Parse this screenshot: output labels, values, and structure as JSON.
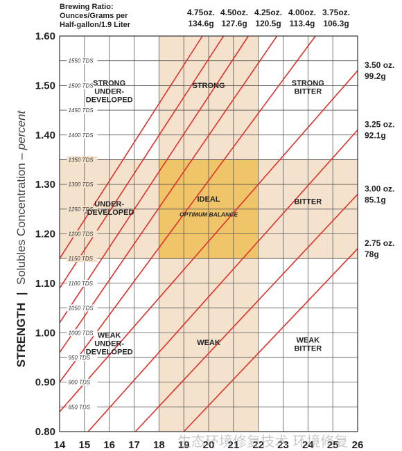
{
  "chart_data": {
    "type": "line",
    "header_lines": [
      "Brewing Ratio:",
      "Ounces/Grams per",
      "Half-gallon/1.9 Liter"
    ],
    "xlim": [
      14,
      26
    ],
    "ylim": [
      0.8,
      1.6
    ],
    "x_ticks": [
      "14",
      "15",
      "16",
      "17",
      "18",
      "19",
      "20",
      "21",
      "22",
      "23",
      "24",
      "25",
      "26"
    ],
    "y_ticks": [
      "0.80",
      "0.90",
      "1.00",
      "1.10",
      "1.20",
      "1.30",
      "1.40",
      "1.50",
      "1.60"
    ],
    "ylabel_bold": "STRENGTH",
    "ylabel_sep": "|",
    "ylabel_text": "Solubles Concentration – ",
    "ylabel_italic": "percent",
    "tds_labels": [
      {
        "label": "850 TDS",
        "y": 0.85
      },
      {
        "label": "900 TDS",
        "y": 0.9
      },
      {
        "label": "950 TDS",
        "y": 0.95
      },
      {
        "label": "1000 TDS",
        "y": 1.0
      },
      {
        "label": "1050 TDS",
        "y": 1.05
      },
      {
        "label": "1100 TDS",
        "y": 1.1
      },
      {
        "label": "1150 TDS",
        "y": 1.15
      },
      {
        "label": "1200 TDS",
        "y": 1.2
      },
      {
        "label": "1250 TDS",
        "y": 1.25
      },
      {
        "label": "1300 TDS",
        "y": 1.3
      },
      {
        "label": "1350 TDS",
        "y": 1.35
      },
      {
        "label": "1400 TDS",
        "y": 1.4
      },
      {
        "label": "1450 TDS",
        "y": 1.45
      },
      {
        "label": "1500 TDS",
        "y": 1.5
      },
      {
        "label": "1550 TDS",
        "y": 1.55
      }
    ],
    "optimum_extraction": [
      18,
      22
    ],
    "optimum_strength": [
      1.15,
      1.35
    ],
    "bands_color": "#f5e2cc",
    "optimum_color": "#f0c56a",
    "line_color": "#e0302c",
    "ratio_lines_top": [
      {
        "oz": "4.75oz.",
        "g": "134.6g",
        "points": [
          [
            14.0,
            1.15
          ],
          [
            19.75,
            1.6
          ]
        ]
      },
      {
        "oz": "4.50oz.",
        "g": "127.6g",
        "points": [
          [
            14.0,
            1.09
          ],
          [
            20.6,
            1.6
          ]
        ]
      },
      {
        "oz": "4.25oz.",
        "g": "120.5g",
        "points": [
          [
            14.0,
            1.02
          ],
          [
            21.6,
            1.6
          ]
        ]
      },
      {
        "oz": "4.00oz.",
        "g": "113.4g",
        "points": [
          [
            14.0,
            0.96
          ],
          [
            22.75,
            1.6
          ]
        ]
      },
      {
        "oz": "3.75oz.",
        "g": "106.3g",
        "points": [
          [
            14.0,
            0.9
          ],
          [
            24.3,
            1.6
          ]
        ]
      }
    ],
    "ratio_lines_right": [
      {
        "oz": "3.50 oz.",
        "g": "99.2g",
        "points": [
          [
            14.0,
            0.84
          ],
          [
            26.0,
            1.53
          ]
        ]
      },
      {
        "oz": "3.25 oz.",
        "g": "92.1g",
        "points": [
          [
            15.15,
            0.8
          ],
          [
            26.0,
            1.41
          ]
        ]
      },
      {
        "oz": "3.00 oz.",
        "g": "85.1g",
        "points": [
          [
            17.05,
            0.8
          ],
          [
            26.0,
            1.28
          ]
        ]
      },
      {
        "oz": "2.75 oz.",
        "g": "78g",
        "points": [
          [
            19.0,
            0.8
          ],
          [
            26.0,
            1.17
          ]
        ]
      }
    ],
    "regions": [
      {
        "lines": [
          "STRONG",
          "UNDER-",
          "DEVELOPED"
        ],
        "x": 16.0,
        "y": 1.5
      },
      {
        "lines": [
          "STRONG"
        ],
        "x": 20.0,
        "y": 1.495
      },
      {
        "lines": [
          "STRONG",
          "BITTER"
        ],
        "x": 24.0,
        "y": 1.5
      },
      {
        "lines": [
          "UNDER-",
          "-DEVELOPED"
        ],
        "x": 16.0,
        "y": 1.255
      },
      {
        "lines": [
          "IDEAL"
        ],
        "x": 20.0,
        "y": 1.265
      },
      {
        "lines": [
          "BITTER"
        ],
        "x": 24.0,
        "y": 1.26
      },
      {
        "lines": [
          "WEAK",
          "UNDER-",
          "DEVELOPED"
        ],
        "x": 16.0,
        "y": 0.99
      },
      {
        "lines": [
          "WEAK"
        ],
        "x": 20.0,
        "y": 0.975
      },
      {
        "lines": [
          "WEAK",
          "BITTER"
        ],
        "x": 24.0,
        "y": 0.98
      }
    ],
    "optimum_label": {
      "text": "OPTIMUM BALANCE",
      "x": 20.0,
      "y": 1.235
    }
  },
  "watermark": "生态环境修复技术 环境修复"
}
